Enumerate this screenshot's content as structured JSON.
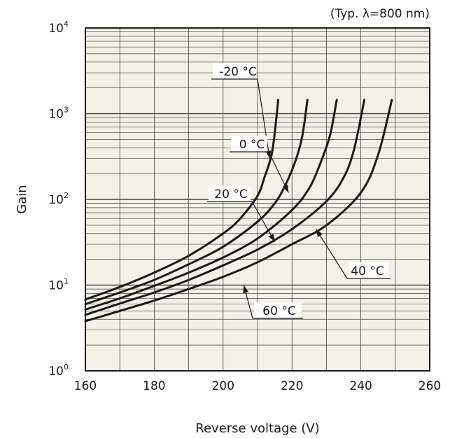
{
  "chart_data": {
    "type": "line",
    "title": "",
    "note": "(Typ. λ=800 nm)",
    "xlabel": "Reverse voltage (V)",
    "ylabel": "Gain",
    "xlim": [
      160,
      260
    ],
    "ylim": [
      1,
      10000
    ],
    "yscale": "log",
    "grid": true,
    "background": "#f3f1e7",
    "line_color": "#1a1a1a",
    "x_ticks": [
      {
        "value": 160,
        "label": "160"
      },
      {
        "value": 180,
        "label": "180"
      },
      {
        "value": 200,
        "label": "200"
      },
      {
        "value": 220,
        "label": "220"
      },
      {
        "value": 240,
        "label": "240"
      },
      {
        "value": 260,
        "label": "260"
      }
    ],
    "y_ticks": [
      {
        "value": 1,
        "base": "10",
        "exp": "0"
      },
      {
        "value": 10,
        "base": "10",
        "exp": "1"
      },
      {
        "value": 100,
        "base": "10",
        "exp": "2"
      },
      {
        "value": 1000,
        "base": "10",
        "exp": "3"
      },
      {
        "value": 10000,
        "base": "10",
        "exp": "4"
      }
    ],
    "series": [
      {
        "name": "-20 °C",
        "x": [
          160,
          170,
          180,
          190,
          200,
          205,
          210,
          212,
          214,
          215,
          216
        ],
        "y": [
          6.8,
          9.5,
          14,
          22,
          40,
          60,
          110,
          180,
          320,
          600,
          1450
        ]
      },
      {
        "name": "0 °C",
        "x": [
          160,
          170,
          180,
          190,
          200,
          210,
          215,
          218,
          221,
          223,
          224.5
        ],
        "y": [
          6.0,
          8.2,
          11.5,
          17.5,
          28,
          55,
          90,
          145,
          280,
          550,
          1450
        ]
      },
      {
        "name": "20 °C",
        "x": [
          160,
          170,
          180,
          190,
          200,
          210,
          220,
          225,
          228,
          231,
          233
        ],
        "y": [
          5.2,
          7.0,
          9.8,
          14,
          21,
          35,
          75,
          135,
          250,
          550,
          1450
        ]
      },
      {
        "name": "40 °C",
        "x": [
          160,
          170,
          180,
          190,
          200,
          210,
          220,
          230,
          235,
          238,
          241
        ],
        "y": [
          4.5,
          6.1,
          8.2,
          11.5,
          17,
          26,
          45,
          95,
          180,
          380,
          1450
        ]
      },
      {
        "name": "60 °C",
        "x": [
          160,
          170,
          180,
          190,
          200,
          210,
          220,
          230,
          240,
          245,
          249
        ],
        "y": [
          3.8,
          5.0,
          6.6,
          9.0,
          12.5,
          18.5,
          30,
          50,
          120,
          330,
          1450
        ]
      }
    ],
    "annotations": [
      {
        "label": "-20 °C",
        "point": [
          213.5,
          300
        ]
      },
      {
        "label": "0 °C",
        "point": [
          219,
          120
        ]
      },
      {
        "label": "20 °C",
        "point": [
          215,
          32
        ]
      },
      {
        "label": "40 °C",
        "point": [
          227,
          45
        ]
      },
      {
        "label": "60 °C",
        "point": [
          206,
          10
        ]
      }
    ]
  }
}
